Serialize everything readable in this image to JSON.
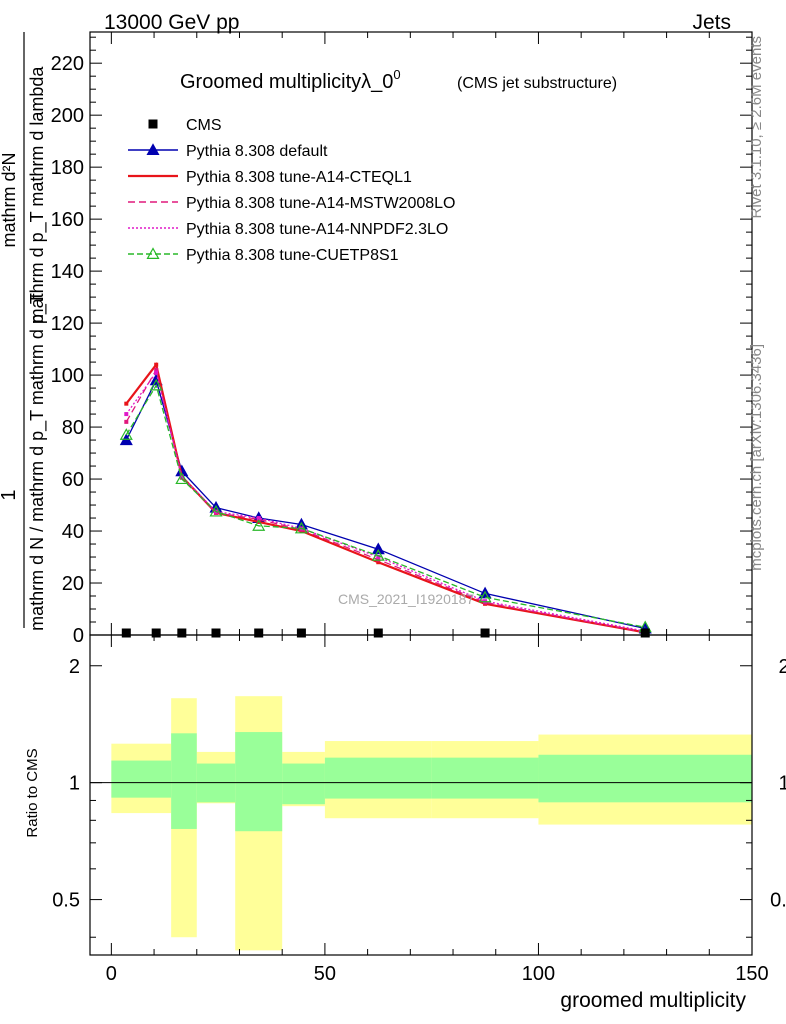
{
  "header": {
    "left": "13000 GeV pp",
    "right": "Jets"
  },
  "side_text": {
    "rivet": "Rivet 3.1.10, ≥ 2.6M events",
    "mcplots": "mcplots.cern.ch [arXiv:1306.3436]"
  },
  "watermark": "CMS_2021_I1920187",
  "chart_data": [
    {
      "type": "line",
      "title": "Groomed multiplicityλ_0",
      "title_superscript": "0",
      "subtitle": "(CMS jet substructure)",
      "ylabel_numerator": "1",
      "ylabel_denominator": "mathrm d N / mathrm d p_T mathrm d p_T",
      "ylabel_right": "mathrm d²N",
      "ylabel_right_denominator": "mathrm d p_T mathrm d lambda",
      "xlim": [
        -5,
        150
      ],
      "ylim": [
        0,
        232
      ],
      "yticks": [
        0,
        20,
        40,
        60,
        80,
        100,
        120,
        140,
        160,
        180,
        200,
        220
      ],
      "grid": false,
      "legend_position": "top-left",
      "x": [
        3.5,
        10.5,
        16.5,
        24.5,
        34.5,
        44.5,
        62.5,
        87.5,
        125
      ],
      "cms": {
        "name": "CMS",
        "values": [
          0,
          0,
          0,
          0,
          0,
          0,
          0,
          0,
          0
        ],
        "color": "#000000"
      },
      "series": [
        {
          "name": "Pythia 8.308 default",
          "values": [
            75,
            98,
            63,
            49,
            45,
            42.5,
            33,
            16,
            2.5
          ],
          "color": "#0000b0",
          "dash": "",
          "marker": "triangle-filled"
        },
        {
          "name": "Pythia 8.308 tune-A14-CTEQL1",
          "values": [
            89,
            104,
            61,
            47,
            43.5,
            40,
            28,
            12,
            1
          ],
          "color": "#e8141a",
          "dash": "",
          "marker": "square"
        },
        {
          "name": "Pythia 8.308 tune-A14-MSTW2008LO",
          "values": [
            82,
            102,
            60.5,
            47,
            44.5,
            40.5,
            29,
            12.5,
            1
          ],
          "color": "#e0187c",
          "dash": "7,4",
          "marker": "square"
        },
        {
          "name": "Pythia 8.308 tune-A14-NNPDF2.3LO",
          "values": [
            85,
            101,
            61,
            47.5,
            45,
            41,
            30,
            13,
            1.5
          ],
          "color": "#e018c8",
          "dash": "2,2",
          "marker": "square"
        },
        {
          "name": "Pythia 8.308 tune-CUETP8S1",
          "values": [
            77,
            96,
            60,
            47.5,
            42,
            41,
            30.5,
            14.5,
            3
          ],
          "color": "#28b828",
          "dash": "6,3",
          "marker": "triangle-open"
        }
      ]
    },
    {
      "type": "area",
      "ylabel": "Ratio to CMS",
      "xlabel": "groomed multiplicity",
      "xlim": [
        -5,
        150
      ],
      "ylim": [
        0.36,
        2.4
      ],
      "ytick_values": [
        0.5,
        1,
        2
      ],
      "ytick_labels": [
        "0.5",
        "1",
        "2"
      ],
      "xticks": [
        0,
        50,
        100,
        150
      ],
      "log_y": true,
      "reference_line": 1,
      "bands": [
        {
          "x0": 0,
          "x1": 14,
          "inner": [
            0.915,
            1.14
          ],
          "outer": [
            0.835,
            1.26
          ]
        },
        {
          "x0": 14,
          "x1": 20,
          "inner": [
            0.76,
            1.34
          ],
          "outer": [
            0.4,
            1.65
          ]
        },
        {
          "x0": 20,
          "x1": 29,
          "inner": [
            0.89,
            1.12
          ],
          "outer": [
            0.885,
            1.2
          ]
        },
        {
          "x0": 29,
          "x1": 40,
          "inner": [
            0.75,
            1.35
          ],
          "outer": [
            0.37,
            1.67
          ]
        },
        {
          "x0": 40,
          "x1": 50,
          "inner": [
            0.88,
            1.12
          ],
          "outer": [
            0.87,
            1.2
          ]
        },
        {
          "x0": 50,
          "x1": 75,
          "inner": [
            0.91,
            1.16
          ],
          "outer": [
            0.81,
            1.28
          ]
        },
        {
          "x0": 75,
          "x1": 100,
          "inner": [
            0.91,
            1.16
          ],
          "outer": [
            0.81,
            1.28
          ]
        },
        {
          "x0": 100,
          "x1": 150,
          "inner": [
            0.89,
            1.18
          ],
          "outer": [
            0.78,
            1.33
          ]
        }
      ],
      "colors": {
        "inner": "#99ff99",
        "outer": "#ffff99"
      }
    }
  ]
}
